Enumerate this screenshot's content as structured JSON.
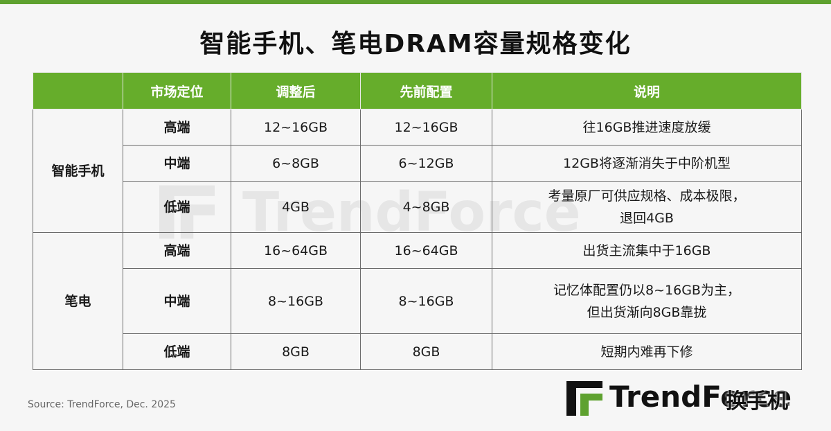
{
  "title": "智能手机、笔电DRAM容量规格变化",
  "watermark_text": "TrendForce",
  "table": {
    "headers": [
      "",
      "市场定位",
      "调整后",
      "先前配置",
      "说明"
    ],
    "groups": [
      {
        "category": "智能手机",
        "rows": [
          {
            "tier": "高端",
            "adjusted": "12~16GB",
            "previous": "12~16GB",
            "note_lines": [
              "往16GB推进速度放缓"
            ]
          },
          {
            "tier": "中端",
            "adjusted": "6~8GB",
            "previous": "6~12GB",
            "note_lines": [
              "12GB将逐渐消失于中阶机型"
            ]
          },
          {
            "tier": "低端",
            "adjusted": "4GB",
            "previous": "4~8GB",
            "note_lines": [
              "考量原厂可供应规格、成本极限，",
              "退回4GB"
            ]
          }
        ]
      },
      {
        "category": "笔电",
        "rows": [
          {
            "tier": "高端",
            "adjusted": "16~64GB",
            "previous": "16~64GB",
            "note_lines": [
              "出货主流集中于16GB"
            ]
          },
          {
            "tier": "中端",
            "adjusted": "8~16GB",
            "previous": "8~16GB",
            "note_lines": [
              "记忆体配置仍以8~16GB为主，",
              "但出货渐向8GB靠拢"
            ]
          },
          {
            "tier": "低端",
            "adjusted": "8GB",
            "previous": "8GB",
            "note_lines": [
              "短期内难再下修"
            ]
          }
        ]
      }
    ]
  },
  "source": "Source: TrendForce, Dec. 2025",
  "logo_text": "TrendForce",
  "stamp_text": "换手机",
  "colors": {
    "accent": "#66ad2b",
    "top_bar": "#5ea12f",
    "logo_mark": "#5ea12f"
  }
}
